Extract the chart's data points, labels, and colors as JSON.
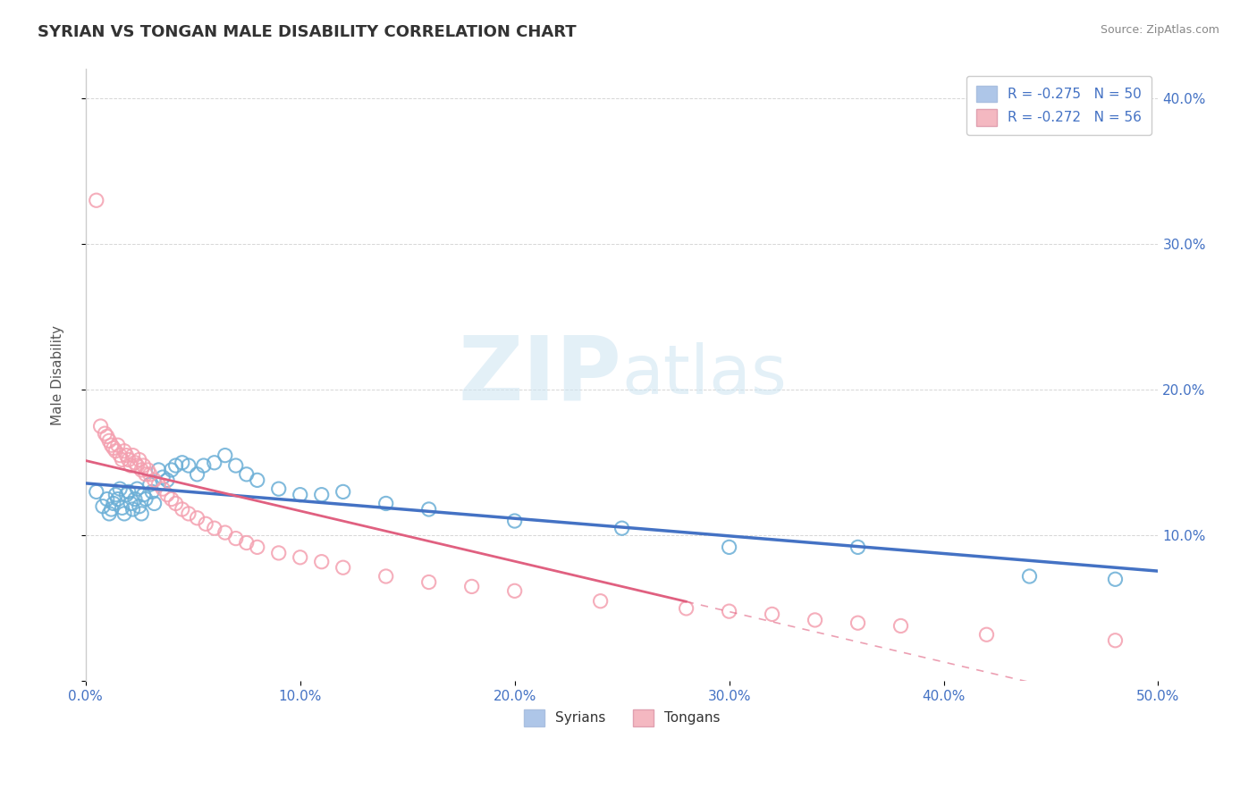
{
  "title": "SYRIAN VS TONGAN MALE DISABILITY CORRELATION CHART",
  "source": "Source: ZipAtlas.com",
  "ylabel": "Male Disability",
  "xmin": 0.0,
  "xmax": 0.5,
  "ymin": 0.0,
  "ymax": 0.42,
  "yticks": [
    0.0,
    0.1,
    0.2,
    0.3,
    0.4
  ],
  "ytick_labels": [
    "",
    "10.0%",
    "20.0%",
    "30.0%",
    "40.0%"
  ],
  "xticks": [
    0.0,
    0.1,
    0.2,
    0.3,
    0.4,
    0.5
  ],
  "xtick_labels": [
    "0.0%",
    "10.0%",
    "20.0%",
    "30.0%",
    "40.0%",
    "50.0%"
  ],
  "syrians_x": [
    0.005,
    0.008,
    0.01,
    0.011,
    0.012,
    0.013,
    0.014,
    0.015,
    0.016,
    0.017,
    0.018,
    0.019,
    0.02,
    0.021,
    0.022,
    0.023,
    0.024,
    0.025,
    0.026,
    0.027,
    0.028,
    0.03,
    0.031,
    0.032,
    0.034,
    0.036,
    0.038,
    0.04,
    0.042,
    0.045,
    0.048,
    0.052,
    0.055,
    0.06,
    0.065,
    0.07,
    0.075,
    0.08,
    0.09,
    0.1,
    0.11,
    0.12,
    0.14,
    0.16,
    0.2,
    0.25,
    0.3,
    0.36,
    0.44,
    0.48
  ],
  "syrians_y": [
    0.13,
    0.12,
    0.125,
    0.115,
    0.118,
    0.122,
    0.128,
    0.125,
    0.132,
    0.119,
    0.115,
    0.128,
    0.13,
    0.122,
    0.118,
    0.125,
    0.132,
    0.12,
    0.115,
    0.128,
    0.125,
    0.135,
    0.13,
    0.122,
    0.145,
    0.14,
    0.138,
    0.145,
    0.148,
    0.15,
    0.148,
    0.142,
    0.148,
    0.15,
    0.155,
    0.148,
    0.142,
    0.138,
    0.132,
    0.128,
    0.128,
    0.13,
    0.122,
    0.118,
    0.11,
    0.105,
    0.092,
    0.092,
    0.072,
    0.07
  ],
  "tongans_x": [
    0.005,
    0.007,
    0.009,
    0.01,
    0.011,
    0.012,
    0.013,
    0.014,
    0.015,
    0.016,
    0.017,
    0.018,
    0.019,
    0.02,
    0.021,
    0.022,
    0.023,
    0.024,
    0.025,
    0.026,
    0.027,
    0.028,
    0.029,
    0.03,
    0.032,
    0.034,
    0.036,
    0.038,
    0.04,
    0.042,
    0.045,
    0.048,
    0.052,
    0.056,
    0.06,
    0.065,
    0.07,
    0.075,
    0.08,
    0.09,
    0.1,
    0.11,
    0.12,
    0.14,
    0.16,
    0.18,
    0.2,
    0.24,
    0.28,
    0.3,
    0.32,
    0.34,
    0.36,
    0.38,
    0.42,
    0.48
  ],
  "tongans_y": [
    0.33,
    0.175,
    0.17,
    0.168,
    0.165,
    0.162,
    0.16,
    0.158,
    0.162,
    0.155,
    0.152,
    0.158,
    0.155,
    0.152,
    0.148,
    0.155,
    0.15,
    0.148,
    0.152,
    0.145,
    0.148,
    0.142,
    0.145,
    0.142,
    0.138,
    0.135,
    0.132,
    0.128,
    0.125,
    0.122,
    0.118,
    0.115,
    0.112,
    0.108,
    0.105,
    0.102,
    0.098,
    0.095,
    0.092,
    0.088,
    0.085,
    0.082,
    0.078,
    0.072,
    0.068,
    0.065,
    0.062,
    0.055,
    0.05,
    0.048,
    0.046,
    0.042,
    0.04,
    0.038,
    0.032,
    0.028
  ],
  "syrian_color": "#6aaed6",
  "tongan_color": "#f4a0b0",
  "syrian_line_color": "#4472c4",
  "tongan_line_color": "#e06080",
  "background_color": "#ffffff",
  "grid_color": "#cccccc",
  "watermark_zip": "ZIP",
  "watermark_atlas": "atlas",
  "legend_label_1": "R = -0.275   N = 50",
  "legend_label_2": "R = -0.272   N = 56",
  "legend_color_1": "#aec6e8",
  "legend_color_2": "#f4b8c1"
}
